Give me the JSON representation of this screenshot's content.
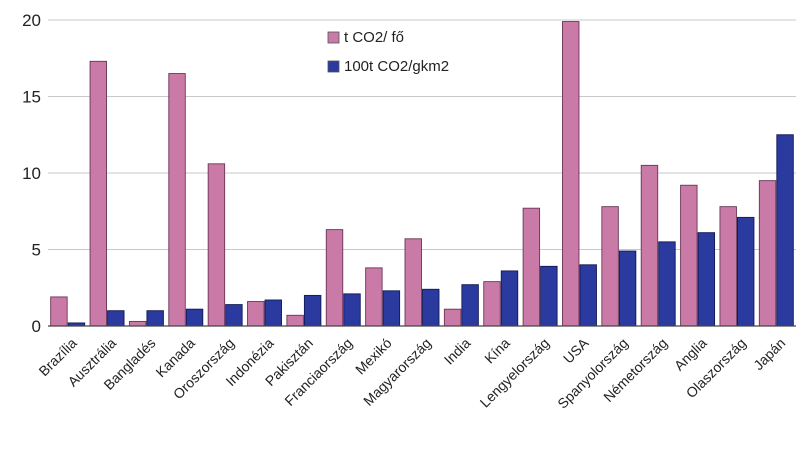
{
  "chart_data": {
    "type": "bar",
    "title": "",
    "xlabel": "",
    "ylabel": "",
    "ylim": [
      0,
      20
    ],
    "yticks": [
      0,
      5,
      10,
      15,
      20
    ],
    "grid": "horizontal",
    "legend_position": "top-center",
    "categories": [
      "Brazília",
      "Ausztrália",
      "Bangladés",
      "Kanada",
      "Oroszország",
      "Indonézia",
      "Pakisztán",
      "Franciaország",
      "Mexikó",
      "Magyarország",
      "India",
      "Kína",
      "Lengyelország",
      "USA",
      "Spanyolország",
      "Németország",
      "Anglia",
      "Olaszország",
      "Japán"
    ],
    "series": [
      {
        "name": "t CO2/ fő",
        "color": "#c97aa6",
        "values": [
          1.9,
          17.3,
          0.3,
          16.5,
          10.6,
          1.6,
          0.7,
          6.3,
          3.8,
          5.7,
          1.1,
          2.9,
          7.7,
          19.9,
          7.8,
          10.5,
          9.2,
          7.8,
          9.5
        ]
      },
      {
        "name": "100t CO2/gkm2",
        "color": "#2a3a9e",
        "values": [
          0.2,
          1.0,
          1.0,
          1.1,
          1.4,
          1.7,
          2.0,
          2.1,
          2.3,
          2.4,
          2.7,
          3.6,
          3.9,
          4.0,
          4.9,
          5.5,
          6.1,
          7.1,
          12.5
        ]
      }
    ]
  }
}
